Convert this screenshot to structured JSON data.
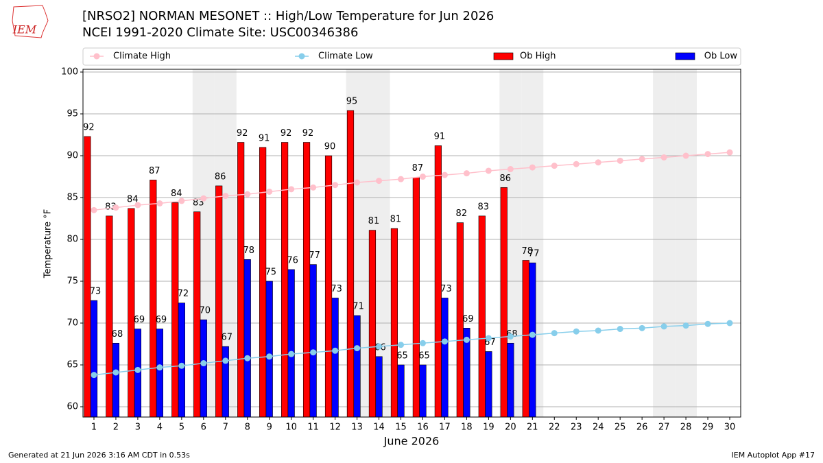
{
  "logo": "IEM",
  "chart_data": {
    "type": "bar",
    "title": "[NRSO2] NORMAN MESONET :: High/Low Temperature for Jun 2026",
    "subtitle": "NCEI 1991-2020 Climate Site: USC00346386",
    "xlabel": "June 2026",
    "ylabel": "Temperature °F",
    "categories": [
      "1",
      "2",
      "3",
      "4",
      "5",
      "6",
      "7",
      "8",
      "9",
      "10",
      "11",
      "12",
      "13",
      "14",
      "15",
      "16",
      "17",
      "18",
      "19",
      "20",
      "21",
      "22",
      "23",
      "24",
      "25",
      "26",
      "27",
      "28",
      "29",
      "30"
    ],
    "shaded_categories": [
      "6",
      "7",
      "13",
      "14",
      "20",
      "21",
      "27",
      "28"
    ],
    "ylim": [
      58.77,
      100.33
    ],
    "yticks": [
      60,
      65,
      70,
      75,
      80,
      85,
      90,
      95,
      100
    ],
    "grid": true,
    "legend": "top",
    "series": [
      {
        "name": "Climate High",
        "color": "#ffc0cb",
        "type": "line",
        "values": [
          83.5,
          83.8,
          84.1,
          84.3,
          84.6,
          84.9,
          85.2,
          85.4,
          85.7,
          86.0,
          86.2,
          86.5,
          86.8,
          87.0,
          87.2,
          87.5,
          87.7,
          87.9,
          88.2,
          88.4,
          88.6,
          88.8,
          89.0,
          89.2,
          89.4,
          89.6,
          89.8,
          90.0,
          90.2,
          90.4
        ]
      },
      {
        "name": "Climate Low",
        "color": "#87ceeb",
        "type": "line",
        "values": [
          63.8,
          64.1,
          64.4,
          64.7,
          64.9,
          65.2,
          65.5,
          65.8,
          66.0,
          66.3,
          66.5,
          66.7,
          67.0,
          67.2,
          67.4,
          67.6,
          67.8,
          68.0,
          68.2,
          68.4,
          68.6,
          68.8,
          69.0,
          69.1,
          69.3,
          69.4,
          69.6,
          69.7,
          69.9,
          70.0
        ]
      },
      {
        "name": "Ob High",
        "color": "#ff0000",
        "type": "bar",
        "values": [
          92.3,
          82.8,
          83.7,
          87.1,
          84.4,
          83.3,
          86.4,
          91.6,
          91.0,
          91.6,
          91.6,
          90.0,
          95.4,
          81.1,
          81.3,
          87.4,
          91.2,
          82.0,
          82.8,
          86.2,
          77.5,
          null,
          null,
          null,
          null,
          null,
          null,
          null,
          null,
          null
        ],
        "value_labels": [
          "92",
          "83",
          "84",
          "87",
          "84",
          "83",
          "86",
          "92",
          "91",
          "92",
          "92",
          "90",
          "95",
          "81",
          "81",
          "87",
          "91",
          "82",
          "83",
          "86",
          "78",
          null,
          null,
          null,
          null,
          null,
          null,
          null,
          null,
          null
        ]
      },
      {
        "name": "Ob Low",
        "color": "#0000ff",
        "type": "bar",
        "values": [
          72.7,
          67.6,
          69.3,
          69.3,
          72.4,
          70.4,
          67.2,
          77.6,
          75.0,
          76.4,
          77.0,
          73.0,
          70.9,
          66.0,
          65.0,
          65.0,
          73.0,
          69.4,
          66.6,
          67.6,
          77.2,
          null,
          null,
          null,
          null,
          null,
          null,
          null,
          null,
          null
        ],
        "value_labels": [
          "73",
          "68",
          "69",
          "69",
          "72",
          "70",
          "67",
          "78",
          "75",
          "76",
          "77",
          "73",
          "71",
          "66",
          "65",
          "65",
          "73",
          "69",
          "67",
          "68",
          "77",
          null,
          null,
          null,
          null,
          null,
          null,
          null,
          null,
          null
        ]
      }
    ]
  },
  "footer": {
    "left": "Generated at 21 Jun 2026 3:16 AM CDT in 0.53s",
    "right": "IEM Autoplot App #17"
  }
}
